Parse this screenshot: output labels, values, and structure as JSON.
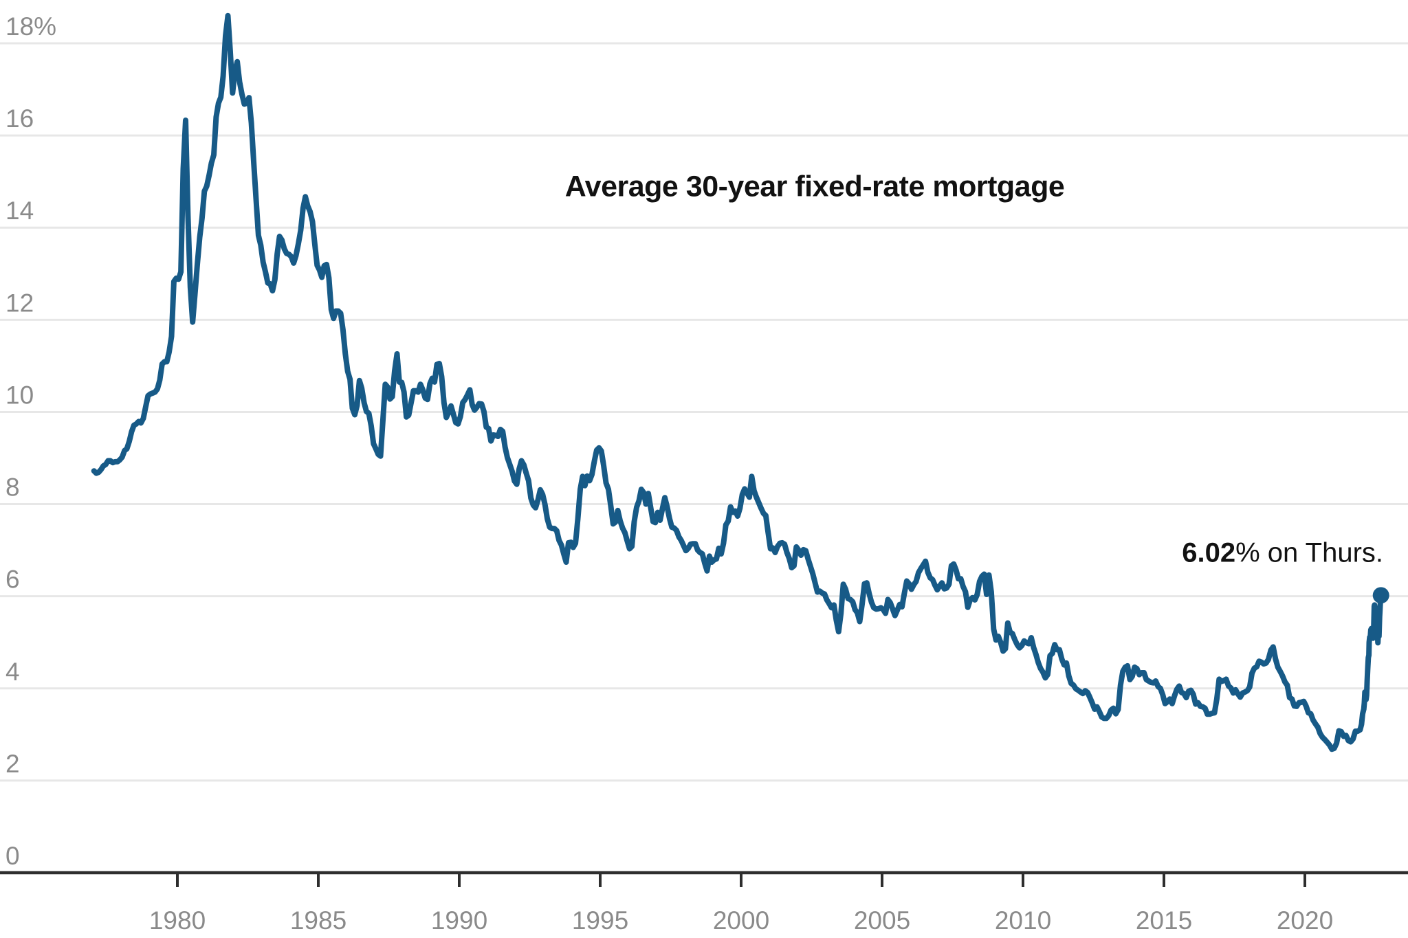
{
  "title": {
    "text": "Average 30-year fixed-rate mortgage"
  },
  "annotation": {
    "value": "6.02",
    "suffix": "% on Thurs."
  },
  "chart_data": {
    "type": "line",
    "title": "Average 30-year fixed-rate mortgage",
    "series_name": "30-year fixed-rate mortgage average (%)",
    "x_range": [
      1977.0,
      2022.75
    ],
    "y_range": [
      0,
      18.65
    ],
    "grid": true,
    "x_axis": {
      "ticks": [
        1980,
        1985,
        1990,
        1995,
        2000,
        2005,
        2010,
        2015,
        2020
      ]
    },
    "y_axis": {
      "tick_values": [
        0,
        2,
        4,
        6,
        8,
        10,
        12,
        14,
        16,
        18
      ],
      "tick_labels": [
        "0",
        "2",
        "4",
        "6",
        "8",
        "10",
        "12",
        "14",
        "16",
        "18%"
      ]
    },
    "colors": {
      "line": "#175a87",
      "grid": "#e7e7e7",
      "axis": "#2e2e2e",
      "tick_label": "#8a8a8a",
      "title": "#121212",
      "annotation": "#121212"
    },
    "series": [
      {
        "name": "30-year fixed-rate mortgage (%)",
        "monthly_start_year": 1977,
        "monthly_values": [
          8.72,
          8.67,
          8.69,
          8.75,
          8.83,
          8.86,
          8.94,
          8.94,
          8.9,
          8.92,
          8.92,
          8.96,
          9.02,
          9.16,
          9.2,
          9.36,
          9.57,
          9.71,
          9.74,
          9.79,
          9.76,
          9.86,
          10.11,
          10.35,
          10.39,
          10.41,
          10.43,
          10.5,
          10.69,
          11.04,
          11.09,
          11.09,
          11.3,
          11.64,
          12.83,
          12.9,
          12.88,
          13.04,
          15.28,
          16.33,
          14.26,
          12.71,
          11.95,
          12.56,
          13.2,
          13.79,
          14.21,
          14.79,
          14.9,
          15.13,
          15.4,
          15.58,
          16.4,
          16.7,
          16.83,
          17.29,
          18.16,
          18.6,
          17.83,
          16.92,
          17.4,
          17.6,
          17.16,
          16.89,
          16.68,
          16.7,
          16.82,
          16.27,
          15.43,
          14.61,
          13.83,
          13.62,
          13.25,
          13.04,
          12.8,
          12.78,
          12.63,
          12.87,
          13.43,
          13.81,
          13.73,
          13.54,
          13.44,
          13.42,
          13.37,
          13.23,
          13.39,
          13.65,
          13.94,
          14.42,
          14.67,
          14.47,
          14.35,
          14.13,
          13.64,
          13.18,
          13.08,
          12.92,
          13.17,
          13.2,
          12.91,
          12.22,
          12.03,
          12.19,
          12.19,
          12.14,
          11.78,
          11.26,
          10.88,
          10.71,
          10.08,
          9.94,
          10.14,
          10.68,
          10.51,
          10.2,
          10.01,
          9.97,
          9.7,
          9.31,
          9.2,
          9.08,
          9.04,
          9.83,
          10.6,
          10.54,
          10.28,
          10.33,
          10.89,
          11.26,
          10.65,
          10.64,
          10.43,
          9.89,
          9.93,
          10.2,
          10.46,
          10.46,
          10.43,
          10.6,
          10.48,
          10.3,
          10.27,
          10.61,
          10.73,
          10.65,
          11.03,
          11.05,
          10.77,
          10.2,
          9.88,
          9.99,
          10.13,
          9.95,
          9.77,
          9.74,
          9.9,
          10.2,
          10.27,
          10.37,
          10.48,
          10.16,
          10.04,
          10.1,
          10.18,
          10.17,
          10.01,
          9.67,
          9.64,
          9.37,
          9.5,
          9.49,
          9.47,
          9.62,
          9.58,
          9.24,
          9.01,
          8.86,
          8.71,
          8.5,
          8.43,
          8.76,
          8.94,
          8.85,
          8.67,
          8.51,
          8.13,
          7.98,
          7.92,
          8.09,
          8.31,
          8.21,
          7.99,
          7.68,
          7.5,
          7.47,
          7.47,
          7.42,
          7.21,
          7.11,
          6.92,
          6.74,
          7.16,
          7.17,
          7.06,
          7.15,
          7.68,
          8.32,
          8.6,
          8.4,
          8.61,
          8.51,
          8.64,
          8.93,
          9.17,
          9.22,
          9.15,
          8.83,
          8.46,
          8.32,
          7.96,
          7.57,
          7.61,
          7.86,
          7.64,
          7.48,
          7.38,
          7.2,
          7.03,
          7.08,
          7.62,
          7.93,
          8.07,
          8.32,
          8.25,
          8.0,
          8.23,
          7.92,
          7.62,
          7.6,
          7.82,
          7.65,
          7.9,
          8.14,
          7.94,
          7.69,
          7.5,
          7.48,
          7.43,
          7.29,
          7.21,
          7.1,
          6.99,
          7.04,
          7.13,
          7.14,
          7.14,
          7.0,
          6.95,
          6.92,
          6.72,
          6.55,
          6.87,
          6.74,
          6.79,
          6.81,
          7.04,
          6.92,
          7.15,
          7.55,
          7.63,
          7.94,
          7.82,
          7.85,
          7.74,
          7.91,
          8.21,
          8.33,
          8.24,
          8.15,
          8.6,
          8.29,
          8.15,
          8.03,
          7.91,
          7.8,
          7.75,
          7.38,
          7.03,
          7.05,
          6.95,
          7.08,
          7.15,
          7.16,
          7.13,
          6.95,
          6.82,
          6.62,
          6.66,
          7.07,
          7.0,
          6.89,
          7.01,
          6.99,
          6.81,
          6.65,
          6.49,
          6.29,
          6.09,
          6.11,
          6.07,
          6.05,
          5.92,
          5.84,
          5.75,
          5.81,
          5.48,
          5.23,
          5.63,
          6.26,
          6.15,
          5.95,
          5.93,
          5.88,
          5.71,
          5.64,
          5.45,
          5.83,
          6.27,
          6.29,
          6.06,
          5.87,
          5.75,
          5.72,
          5.73,
          5.75,
          5.71,
          5.63,
          5.93,
          5.86,
          5.72,
          5.58,
          5.7,
          5.82,
          5.77,
          6.07,
          6.33,
          6.27,
          6.15,
          6.25,
          6.32,
          6.51,
          6.6,
          6.68,
          6.76,
          6.52,
          6.4,
          6.36,
          6.24,
          6.14,
          6.22,
          6.29,
          6.16,
          6.18,
          6.26,
          6.66,
          6.7,
          6.57,
          6.38,
          6.38,
          6.21,
          6.1,
          5.76,
          5.92,
          5.97,
          5.92,
          6.04,
          6.32,
          6.43,
          6.48,
          6.04,
          6.46,
          6.09,
          5.29,
          5.05,
          5.13,
          5.0,
          4.81,
          4.86,
          5.42,
          5.22,
          5.19,
          5.06,
          4.95,
          4.88,
          4.93,
          5.03,
          4.99,
          4.97,
          5.1,
          4.89,
          4.74,
          4.56,
          4.43,
          4.35,
          4.23,
          4.3,
          4.71,
          4.76,
          4.95,
          4.84,
          4.84,
          4.64,
          4.51,
          4.55,
          4.27,
          4.11,
          4.07,
          3.99,
          3.96,
          3.92,
          3.89,
          3.95,
          3.91,
          3.8,
          3.68,
          3.55,
          3.6,
          3.5,
          3.38,
          3.35,
          3.35,
          3.41,
          3.53,
          3.57,
          3.45,
          3.54,
          4.07,
          4.37,
          4.46,
          4.49,
          4.19,
          4.26,
          4.46,
          4.43,
          4.3,
          4.34,
          4.34,
          4.19,
          4.16,
          4.13,
          4.12,
          4.16,
          4.04,
          4.0,
          3.86,
          3.67,
          3.71,
          3.77,
          3.67,
          3.84,
          3.98,
          4.05,
          3.91,
          3.89,
          3.8,
          3.94,
          3.96,
          3.87,
          3.66,
          3.69,
          3.61,
          3.6,
          3.57,
          3.44,
          3.44,
          3.46,
          3.47,
          3.77,
          4.2,
          4.15,
          4.17,
          4.2,
          4.05,
          4.01,
          3.9,
          3.97,
          3.88,
          3.81,
          3.9,
          3.92,
          3.95,
          4.03,
          4.33,
          4.44,
          4.47,
          4.59,
          4.57,
          4.53,
          4.55,
          4.63,
          4.83,
          4.9,
          4.64,
          4.46,
          4.37,
          4.27,
          4.14,
          4.07,
          3.8,
          3.77,
          3.62,
          3.61,
          3.69,
          3.7,
          3.72,
          3.62,
          3.47,
          3.45,
          3.31,
          3.23,
          3.16,
          3.02,
          2.94,
          2.89,
          2.83,
          2.77,
          2.68,
          2.7,
          2.81,
          3.08,
          3.06,
          2.96,
          2.98,
          2.87,
          2.84,
          2.9,
          3.07,
          3.07,
          3.1
        ],
        "weekly_2022": [
          [
            2022.01,
            3.22
          ],
          [
            2022.05,
            3.45
          ],
          [
            2022.09,
            3.55
          ],
          [
            2022.11,
            3.69
          ],
          [
            2022.13,
            3.92
          ],
          [
            2022.15,
            3.89
          ],
          [
            2022.17,
            3.76
          ],
          [
            2022.19,
            3.85
          ],
          [
            2022.21,
            4.16
          ],
          [
            2022.23,
            4.42
          ],
          [
            2022.25,
            4.67
          ],
          [
            2022.27,
            4.72
          ],
          [
            2022.28,
            5.0
          ],
          [
            2022.3,
            5.11
          ],
          [
            2022.32,
            5.1
          ],
          [
            2022.34,
            5.27
          ],
          [
            2022.36,
            5.3
          ],
          [
            2022.38,
            5.25
          ],
          [
            2022.4,
            5.1
          ],
          [
            2022.42,
            5.09
          ],
          [
            2022.44,
            5.23
          ],
          [
            2022.46,
            5.78
          ],
          [
            2022.47,
            5.81
          ],
          [
            2022.49,
            5.7
          ],
          [
            2022.51,
            5.3
          ],
          [
            2022.53,
            5.51
          ],
          [
            2022.55,
            5.54
          ],
          [
            2022.57,
            5.3
          ],
          [
            2022.59,
            4.99
          ],
          [
            2022.61,
            5.22
          ],
          [
            2022.63,
            5.13
          ],
          [
            2022.65,
            5.55
          ],
          [
            2022.66,
            5.66
          ],
          [
            2022.68,
            5.89
          ],
          [
            2022.7,
            6.02
          ]
        ],
        "end_point": {
          "x": 2022.7,
          "y": 6.02,
          "label": "6.02% on Thurs."
        }
      }
    ]
  }
}
